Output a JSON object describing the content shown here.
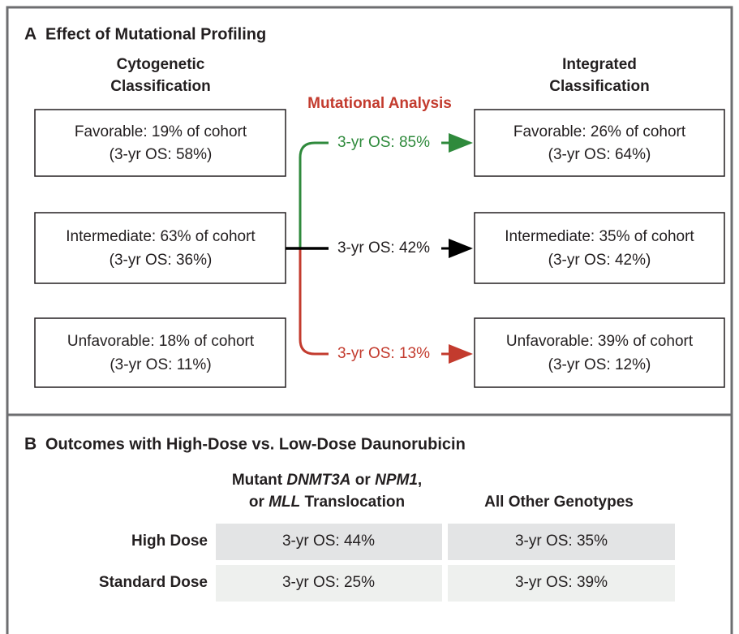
{
  "panel_a": {
    "label": "A",
    "title": "Effect of Mutational Profiling",
    "left_header": [
      "Cytogenetic",
      "Classification"
    ],
    "right_header": [
      "Integrated",
      "Classification"
    ],
    "middle_header": "Mutational Analysis",
    "left_boxes": [
      {
        "line1": "Favorable: 19% of cohort",
        "line2": "(3-yr OS: 58%)"
      },
      {
        "line1": "Intermediate: 63% of cohort",
        "line2": "(3-yr OS: 36%)"
      },
      {
        "line1": "Unfavorable: 18% of cohort",
        "line2": "(3-yr OS: 11%)"
      }
    ],
    "arrows": [
      "3-yr OS: 85%",
      "3-yr OS: 42%",
      "3-yr OS: 13%"
    ],
    "right_boxes": [
      {
        "line1": "Favorable: 26% of cohort",
        "line2": "(3-yr OS: 64%)"
      },
      {
        "line1": "Intermediate: 35% of cohort",
        "line2": "(3-yr OS: 42%)"
      },
      {
        "line1": "Unfavorable: 39% of cohort",
        "line2": "(3-yr OS: 12%)"
      }
    ]
  },
  "panel_b": {
    "label": "B",
    "title": "Outcomes with High-Dose vs. Low-Dose Daunorubicin",
    "column_1_header": [
      [
        "Mutant ",
        "DNMT3A",
        " or ",
        "NPM1",
        ","
      ],
      [
        "or ",
        "MLL",
        " Translocation"
      ]
    ],
    "column_2_header": "All Other Genotypes",
    "rows": [
      {
        "label": "High Dose",
        "cells": [
          "3-yr OS: 44%",
          "3-yr OS: 35%"
        ]
      },
      {
        "label": "Standard Dose",
        "cells": [
          "3-yr OS: 25%",
          "3-yr OS: 39%"
        ]
      }
    ]
  }
}
